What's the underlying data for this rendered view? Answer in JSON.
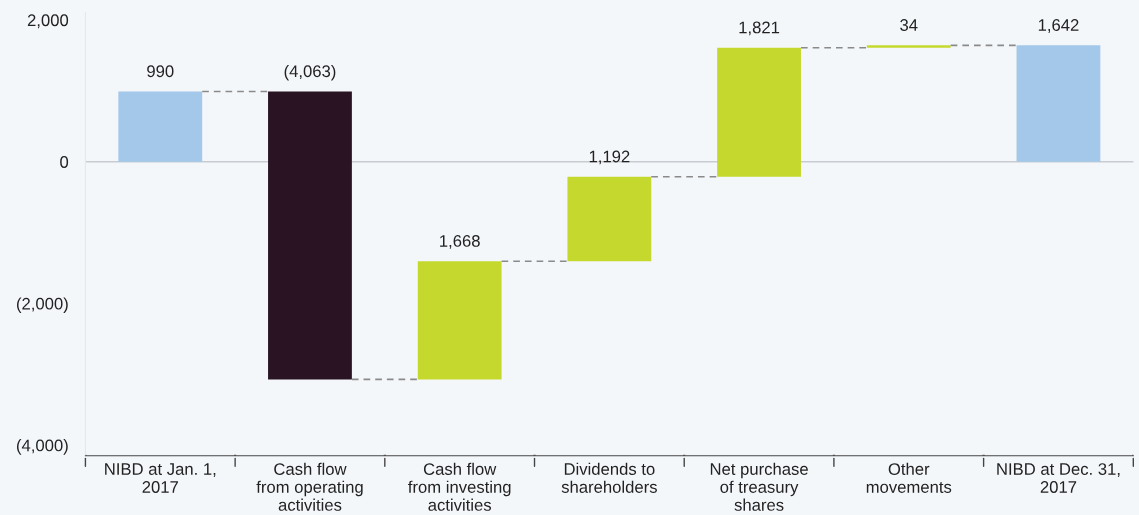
{
  "chart_data": {
    "type": "bar",
    "categories": [
      "NIBD at Jan. 1,\n2017",
      "Cash flow\nfrom operating\nactivities",
      "Cash flow\nfrom investing\nactivities",
      "Dividends to\nshareholders",
      "Net purchase\nof treasury\nshares",
      "Other\nmovements",
      "NIBD at Dec. 31,\n2017"
    ],
    "values": [
      990,
      -4063,
      1668,
      1192,
      1821,
      34,
      1642
    ],
    "base": [
      0,
      990,
      -3073,
      -1405,
      -213,
      1608,
      0
    ],
    "colors": [
      "#a3c8ea",
      "#2a1424",
      "#c5d82e",
      "#c5d82e",
      "#c5d82e",
      "#c5d82e",
      "#a3c8ea"
    ],
    "value_labels": [
      "990",
      "(4,063)",
      "1,668",
      "1,192",
      "1,821",
      "34",
      "1,642"
    ],
    "ylim": [
      -4150,
      2100
    ],
    "yticks": [
      {
        "value": 2000,
        "label": "2,000"
      },
      0,
      {
        "value": -2000,
        "label": "(2,000)"
      },
      {
        "value": -4000,
        "label": "(4,000)"
      }
    ],
    "ref_lines": [
      {
        "axis": "y",
        "value": 0,
        "label": null,
        "color": "#c8ccd0"
      }
    ],
    "grid": false,
    "legend": false
  }
}
